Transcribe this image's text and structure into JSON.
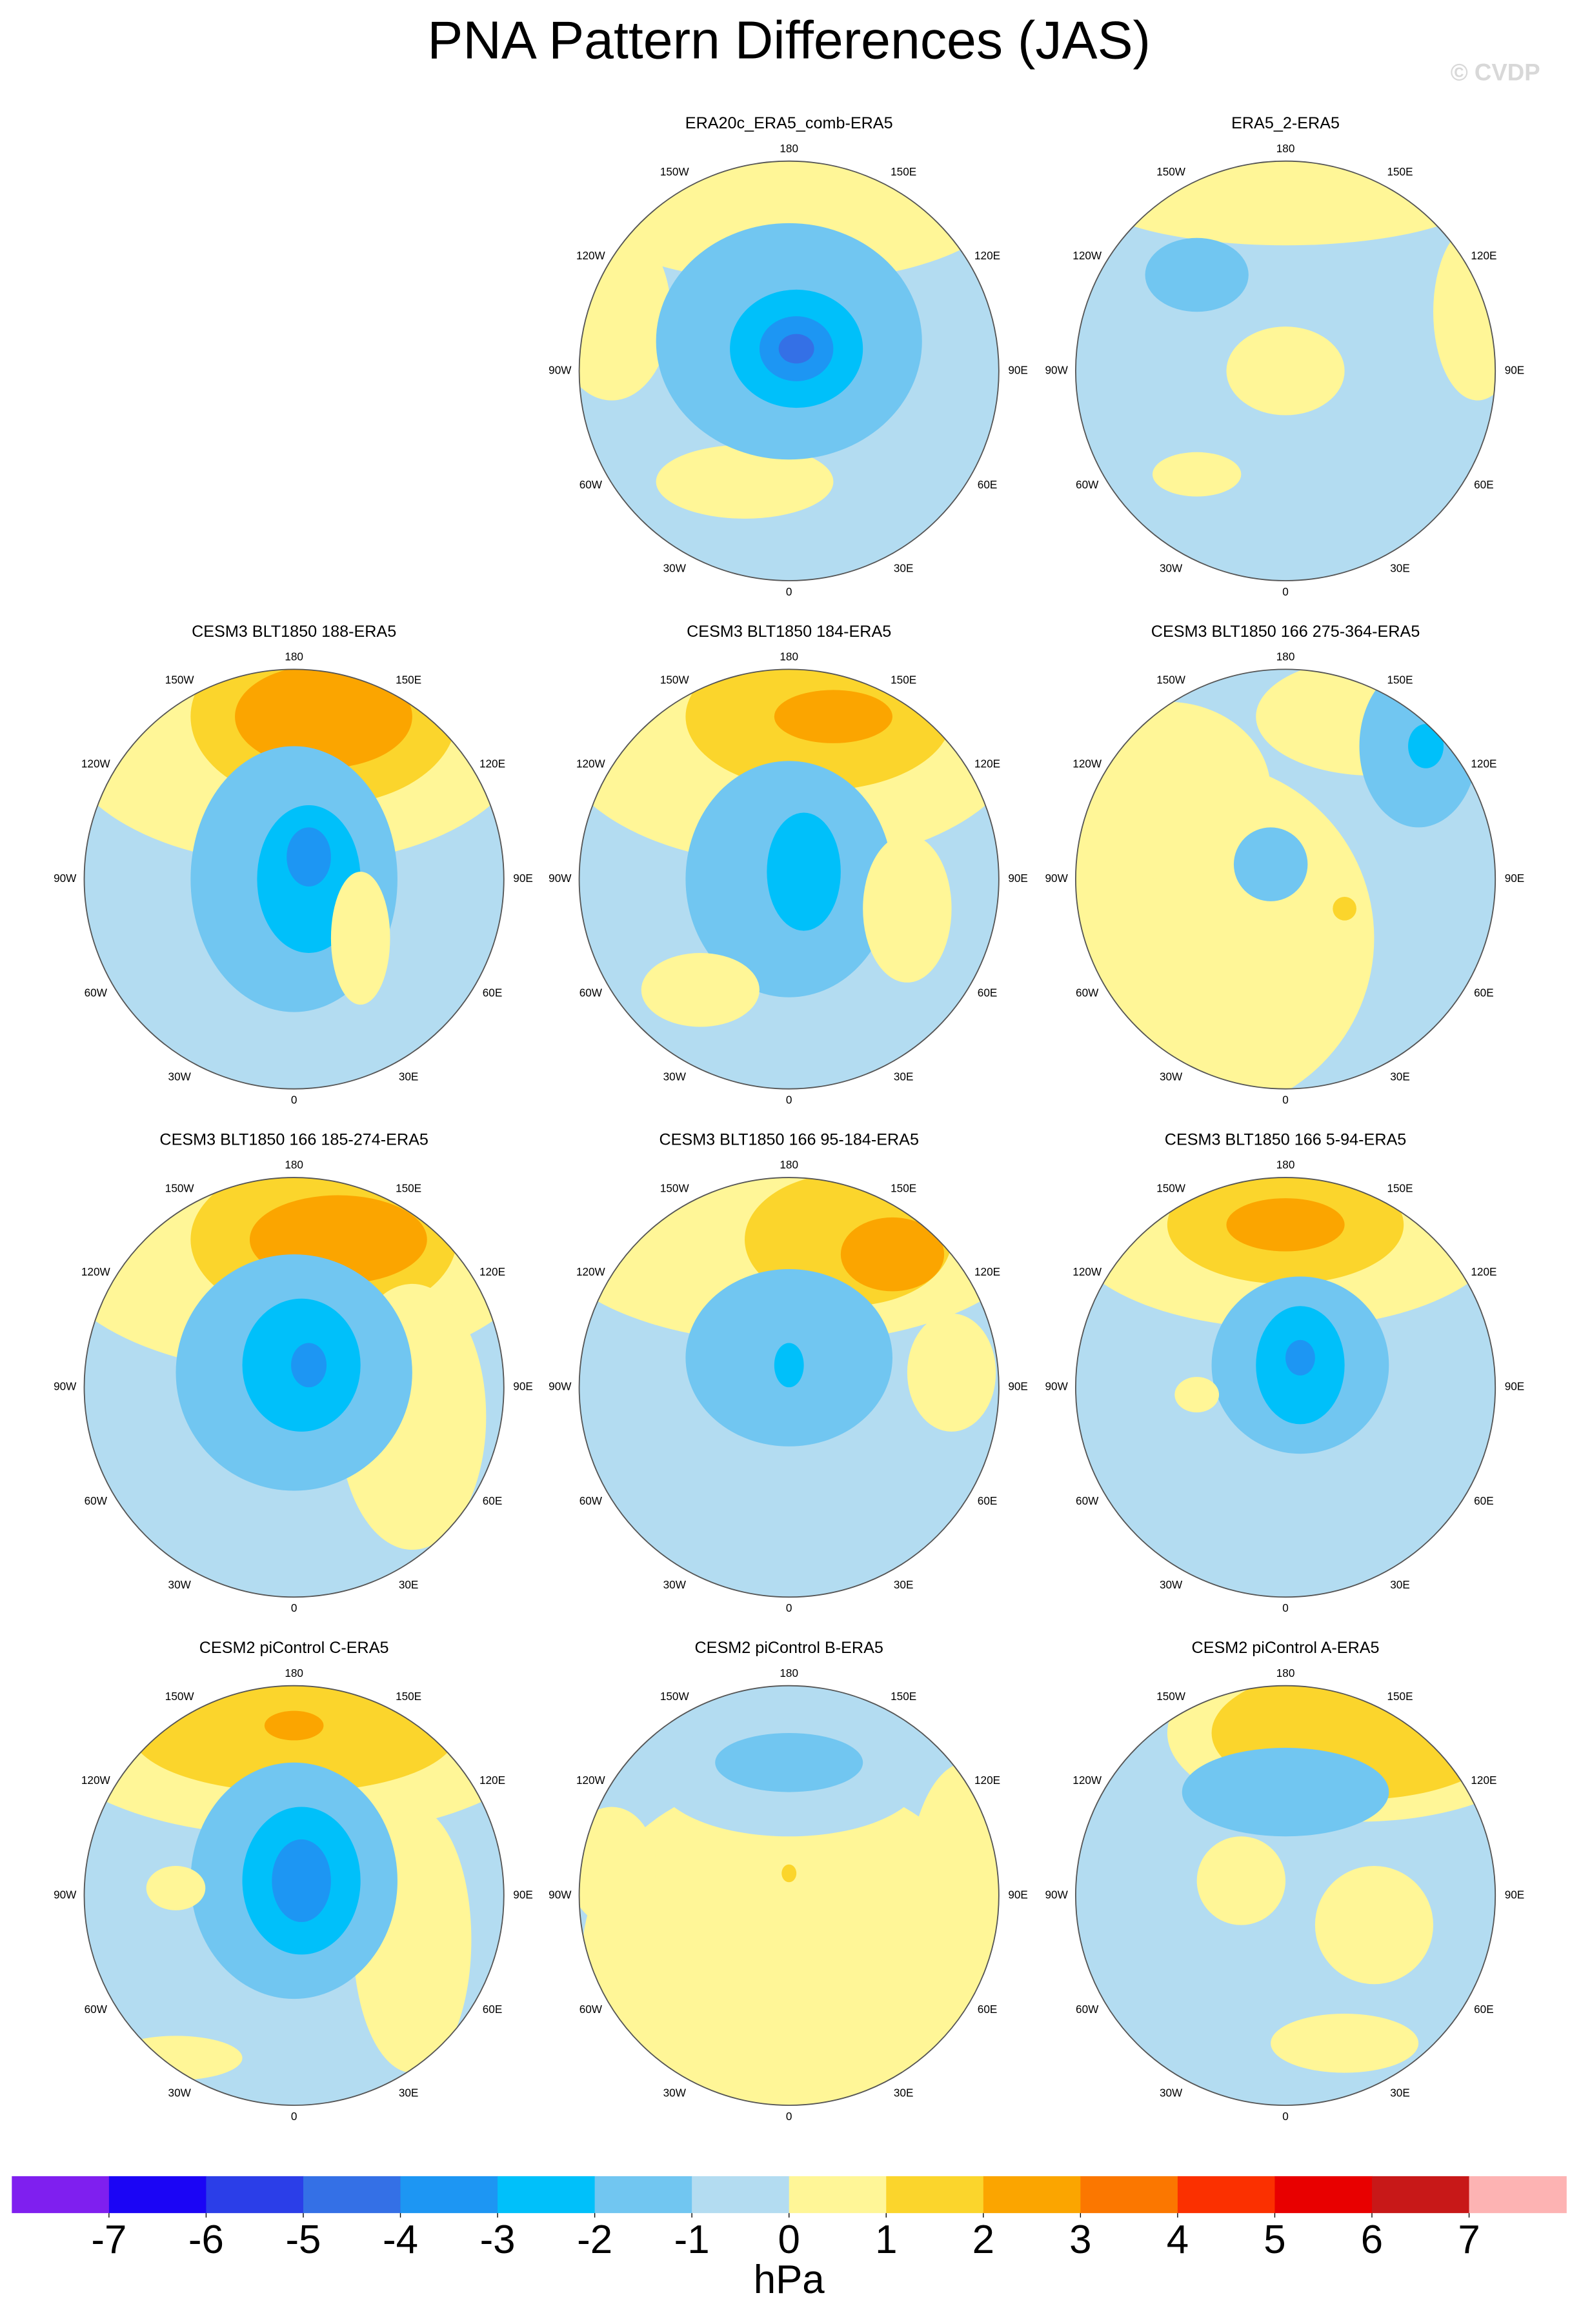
{
  "chart_data": {
    "type": "polar-map-panels",
    "title": "PNA Pattern Differences (JAS)",
    "watermark": "© CVDP",
    "longitude_labels": [
      "180",
      "150E",
      "120E",
      "90E",
      "60E",
      "30E",
      "0",
      "30W",
      "60W",
      "90W",
      "120W",
      "150W"
    ],
    "panels": [
      {
        "title": "ERA20c_ERA5_comb-ERA5"
      },
      {
        "title": "ERA5_2-ERA5"
      },
      {
        "title": "CESM3 BLT1850 188-ERA5"
      },
      {
        "title": "CESM3 BLT1850 184-ERA5"
      },
      {
        "title": "CESM3 BLT1850 166 275-364-ERA5"
      },
      {
        "title": "CESM3 BLT1850 166 185-274-ERA5"
      },
      {
        "title": "CESM3 BLT1850 166 95-184-ERA5"
      },
      {
        "title": "CESM3 BLT1850 166 5-94-ERA5"
      },
      {
        "title": "CESM2 piControl C-ERA5"
      },
      {
        "title": "CESM2 piControl B-ERA5"
      },
      {
        "title": "CESM2 piControl A-ERA5"
      }
    ],
    "colorbar": {
      "colors": [
        "#7f1fef",
        "#1b05f5",
        "#2b3ee8",
        "#3470e6",
        "#1d96f3",
        "#00c0fa",
        "#71c6f1",
        "#b3dcf1",
        "#fff697",
        "#fbd52c",
        "#fba500",
        "#fb7700",
        "#fb3000",
        "#e80000",
        "#c81818",
        "#fdb3b3"
      ],
      "ticks": [
        -7,
        -6,
        -5,
        -4,
        -3,
        -2,
        -1,
        0,
        1,
        2,
        3,
        4,
        5,
        6,
        7
      ],
      "unit": "hPa"
    }
  }
}
